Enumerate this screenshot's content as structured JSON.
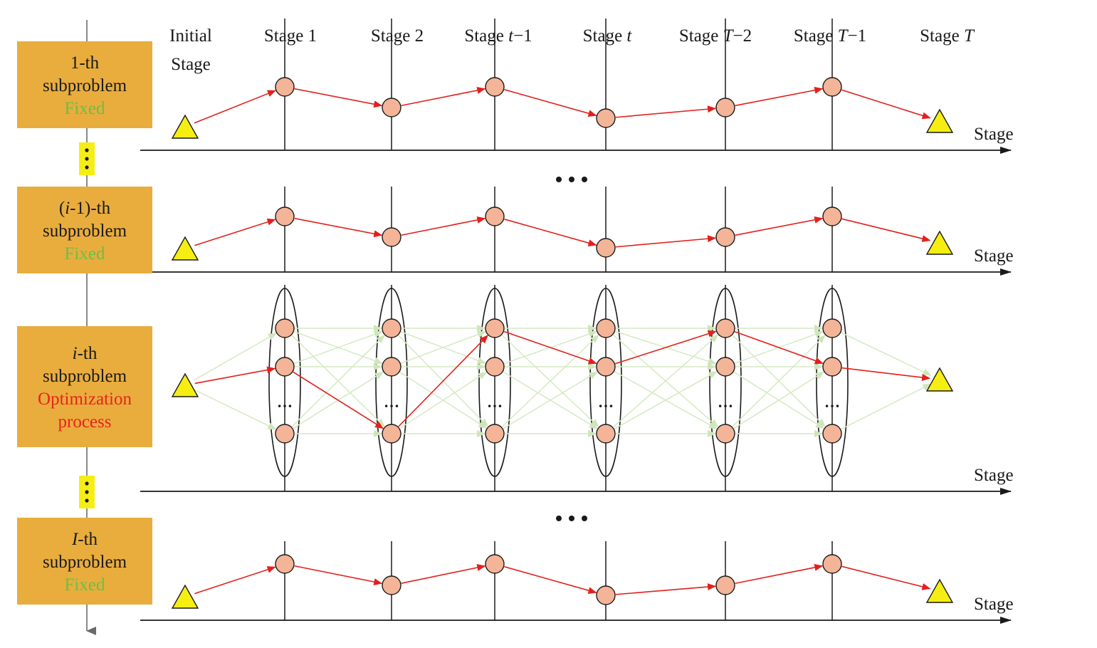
{
  "stages": [
    {
      "id": "s0",
      "prefix": "Initial",
      "var": "",
      "suffix": "",
      "line2": "Stage"
    },
    {
      "id": "s1",
      "prefix": "Stage 1",
      "var": "",
      "suffix": "",
      "line2": ""
    },
    {
      "id": "s2",
      "prefix": "Stage 2",
      "var": "",
      "suffix": "",
      "line2": ""
    },
    {
      "id": "s3",
      "prefix": "Stage ",
      "var": "t",
      "suffix": "−1",
      "line2": ""
    },
    {
      "id": "s4",
      "prefix": "Stage ",
      "var": "t",
      "suffix": "",
      "line2": ""
    },
    {
      "id": "s5",
      "prefix": "Stage ",
      "var": "T",
      "suffix": "−2",
      "line2": ""
    },
    {
      "id": "s6",
      "prefix": "Stage ",
      "var": "T",
      "suffix": "−1",
      "line2": ""
    },
    {
      "id": "s7",
      "prefix": "Stage ",
      "var": "T",
      "suffix": "",
      "line2": ""
    }
  ],
  "axis_label": "Stage",
  "subproblems": [
    {
      "id": "first",
      "name_pre": "",
      "name_var": "",
      "name_post": "1-th",
      "line2": "subproblem",
      "status": "Fixed",
      "status_line2": "",
      "status_color": "#6cbf45",
      "kind": "fixed",
      "path_levels": [
        1,
        2,
        1,
        2.5,
        2,
        1
      ]
    },
    {
      "id": "prev",
      "name_pre": "(",
      "name_var": "i",
      "name_post": "-1)-th",
      "line2": "subproblem",
      "status": "Fixed",
      "status_line2": "",
      "status_color": "#6cbf45",
      "kind": "fixed",
      "path_levels": [
        1,
        2,
        1,
        2.5,
        2,
        1
      ]
    },
    {
      "id": "current",
      "name_pre": "",
      "name_var": "i",
      "name_post": "-th",
      "line2": "subproblem",
      "status": "Optimization",
      "status_line2": "process",
      "status_color": "#e8231d",
      "kind": "opt",
      "path_nodes": [
        1,
        2,
        0,
        1,
        0,
        1
      ]
    },
    {
      "id": "last",
      "name_pre": "",
      "name_var": "I",
      "name_post": "-th",
      "line2": "subproblem",
      "status": "Fixed",
      "status_line2": "",
      "status_color": "#6cbf45",
      "kind": "fixed",
      "path_levels": [
        1,
        2,
        1,
        2.5,
        2,
        1
      ]
    }
  ],
  "ellipsis_text": "•••",
  "node_dots": "…",
  "colors": {
    "box_fill": "#e9ad3e",
    "node_fill": "#f4b497",
    "triangle_fill": "#f6ee12",
    "path_red": "#e3201c",
    "candidate_green": "#d4eac2",
    "vert_ellipsis_bg": "#f6ee12"
  }
}
